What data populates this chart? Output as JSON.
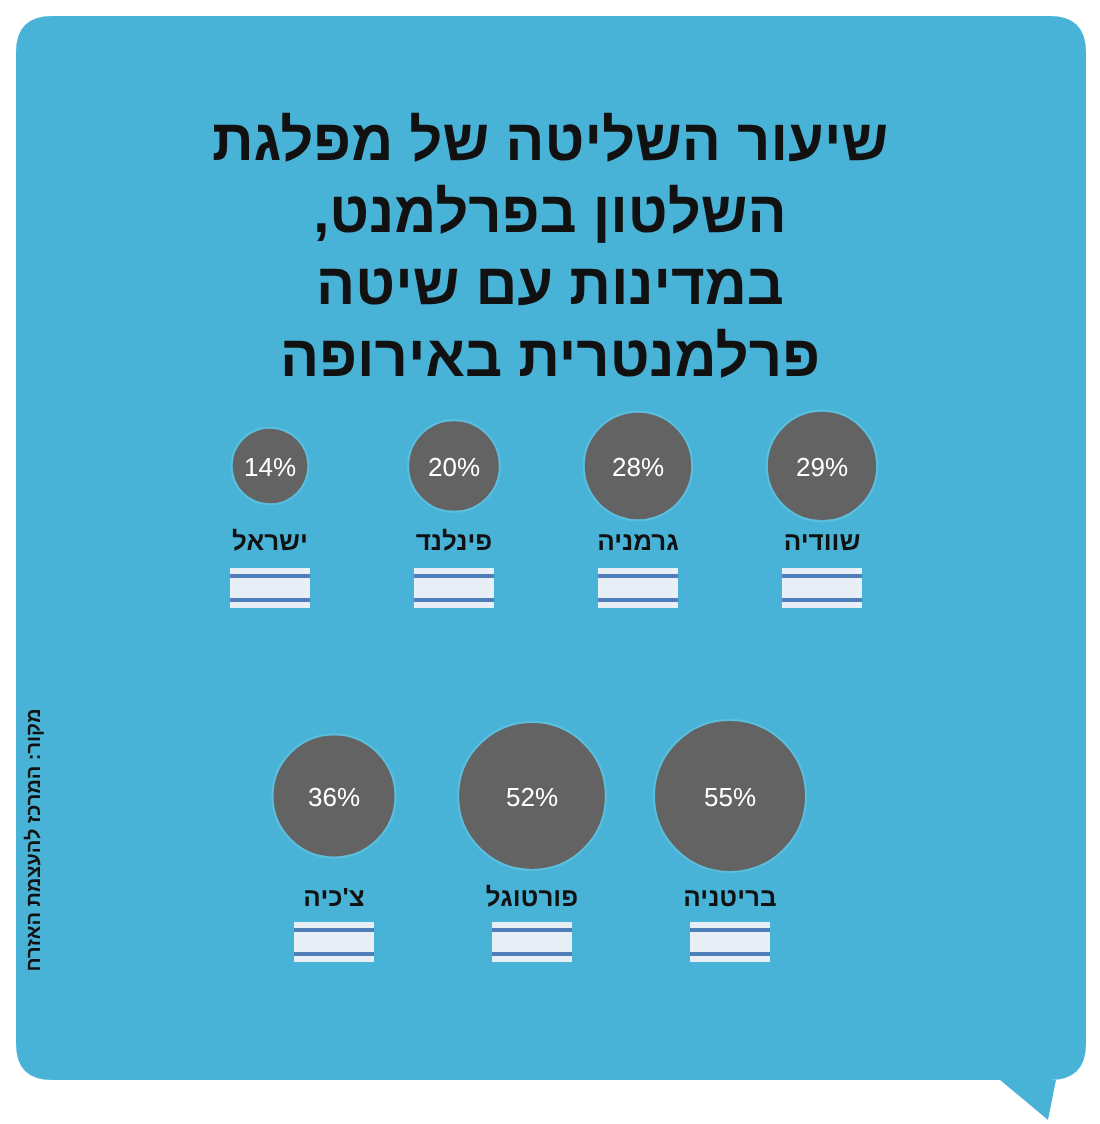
{
  "chart_data": {
    "type": "other",
    "title": "שיעור השליטה של מפלגת השלטון בפרלמנט, במדינות עם שיטה פרלמנטרית באירופה",
    "categories": [
      "שוודיה",
      "גרמניה",
      "פינלנד",
      "ישראל",
      "בריטניה",
      "פורטוגל",
      "צ'כיה"
    ],
    "values": [
      29,
      28,
      20,
      14,
      55,
      52,
      36
    ],
    "value_labels": [
      "29%",
      "28%",
      "20%",
      "14%",
      "55%",
      "52%",
      "36%"
    ],
    "color": "#636363",
    "annotations": [
      "מקור: המרכז להעצמת האזרח"
    ]
  }
}
